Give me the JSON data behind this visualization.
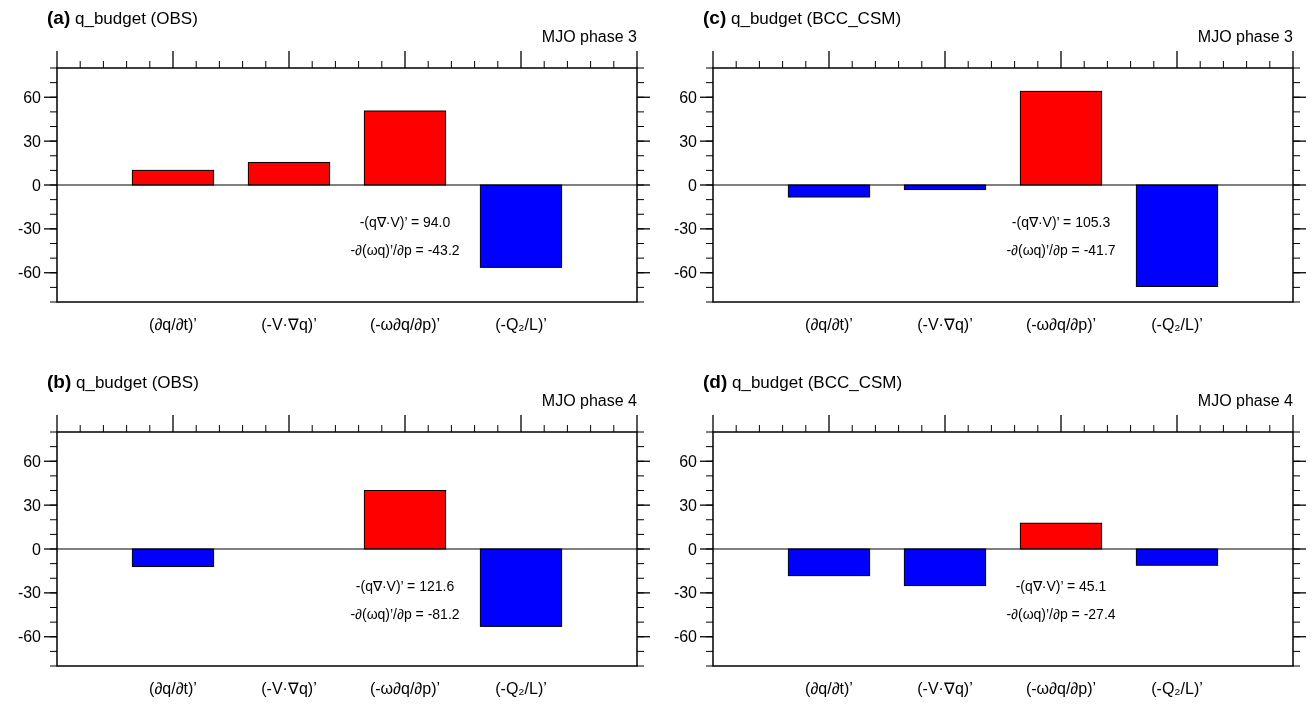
{
  "chart_data": [
    {
      "type": "bar",
      "title": "(a) q_budget (OBS)",
      "subtitle": "MJO phase 3",
      "categories": [
        "(∂q/∂t)’",
        "(-V·∇q)’",
        "(-ω∂q/∂p)’",
        "(-Q₂/L)’"
      ],
      "values": [
        10,
        15.4,
        50.6,
        -56.3
      ],
      "colors": [
        "#ff0000",
        "#ff0000",
        "#ff0000",
        "#0000ff"
      ],
      "ylim": [
        -80,
        80
      ],
      "yticks": [
        -60,
        -30,
        0,
        30,
        60
      ],
      "annotations": [
        "-(q∇·V)’ =  94.0",
        "-∂(ωq)’/∂p = -43.2"
      ]
    },
    {
      "type": "bar",
      "title": "(b) q_budget (OBS)",
      "subtitle": "MJO phase 4",
      "categories": [
        "(∂q/∂t)’",
        "(-V·∇q)’",
        "(-ω∂q/∂p)’",
        "(-Q₂/L)’"
      ],
      "values": [
        -12,
        null,
        40,
        -52.9
      ],
      "colors": [
        "#0000ff",
        null,
        "#ff0000",
        "#0000ff"
      ],
      "ylim": [
        -80,
        80
      ],
      "yticks": [
        -60,
        -30,
        0,
        30,
        60
      ],
      "annotations": [
        "-(q∇·V)’ = 121.6",
        "-∂(ωq)’/∂p = -81.2"
      ]
    },
    {
      "type": "bar",
      "title": "(c) q_budget (BCC_CSM)",
      "subtitle": "MJO phase 3",
      "categories": [
        "(∂q/∂t)’",
        "(-V·∇q)’",
        "(-ω∂q/∂p)’",
        "(-Q₂/L)’"
      ],
      "values": [
        -8.2,
        -3.1,
        64,
        -69.4
      ],
      "colors": [
        "#0000ff",
        "#0000ff",
        "#ff0000",
        "#0000ff"
      ],
      "ylim": [
        -80,
        80
      ],
      "yticks": [
        -60,
        -30,
        0,
        30,
        60
      ],
      "annotations": [
        "-(q∇·V)’ = 105.3",
        "-∂(ωq)’/∂p = -41.7"
      ]
    },
    {
      "type": "bar",
      "title": "(d) q_budget (BCC_CSM)",
      "subtitle": "MJO phase 4",
      "categories": [
        "(∂q/∂t)’",
        "(-V·∇q)’",
        "(-ω∂q/∂p)’",
        "(-Q₂/L)’"
      ],
      "values": [
        -18.2,
        -25,
        17.6,
        -11.1
      ],
      "colors": [
        "#0000ff",
        "#0000ff",
        "#ff0000",
        "#0000ff"
      ],
      "ylim": [
        -80,
        80
      ],
      "yticks": [
        -60,
        -30,
        0,
        30,
        60
      ],
      "annotations": [
        "-(q∇·V)’ =  45.1",
        "-∂(ωq)’/∂p = -27.4"
      ]
    }
  ]
}
